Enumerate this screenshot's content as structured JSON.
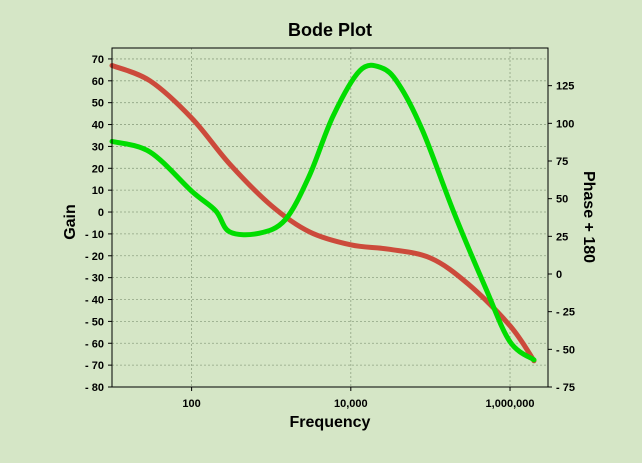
{
  "chart_data": {
    "type": "line",
    "title": "Bode Plot",
    "xlabel": "Frequency",
    "ylabel": "Gain",
    "y2label": "Phase + 180",
    "xscale": "log",
    "xlim": [
      10,
      3000000
    ],
    "ylim": [
      -80,
      75
    ],
    "y2lim": [
      -75,
      150
    ],
    "xticks": [
      {
        "value": 100,
        "label": "100"
      },
      {
        "value": 10000,
        "label": "10,000"
      },
      {
        "value": 1000000,
        "label": "1,000,000"
      }
    ],
    "yticks": [
      70,
      60,
      50,
      40,
      30,
      20,
      10,
      0,
      -10,
      -20,
      -30,
      -40,
      -50,
      -60,
      -70,
      -80
    ],
    "y2ticks": [
      125,
      100,
      75,
      50,
      25,
      0,
      -25,
      -50,
      -75
    ],
    "grid": true,
    "series": [
      {
        "color": "#cc4a3b",
        "axis": "left",
        "x": [
          10,
          30,
          100,
          300,
          1000,
          3000,
          10000,
          30000,
          100000,
          300000,
          1000000,
          2000000
        ],
        "y": [
          67,
          60,
          43,
          22,
          3,
          -9,
          -15,
          -17,
          -21,
          -33,
          -52,
          -68
        ]
      },
      {
        "color": "#00dd00",
        "axis": "right",
        "x": [
          10,
          30,
          100,
          200,
          300,
          700,
          1500,
          3000,
          6000,
          13000,
          24000,
          40000,
          80000,
          200000,
          500000,
          1000000,
          2000000
        ],
        "y": [
          88,
          81,
          55,
          42,
          28,
          27,
          36,
          65,
          105,
          135,
          137,
          126,
          95,
          40,
          -10,
          -45,
          -57
        ]
      }
    ]
  }
}
